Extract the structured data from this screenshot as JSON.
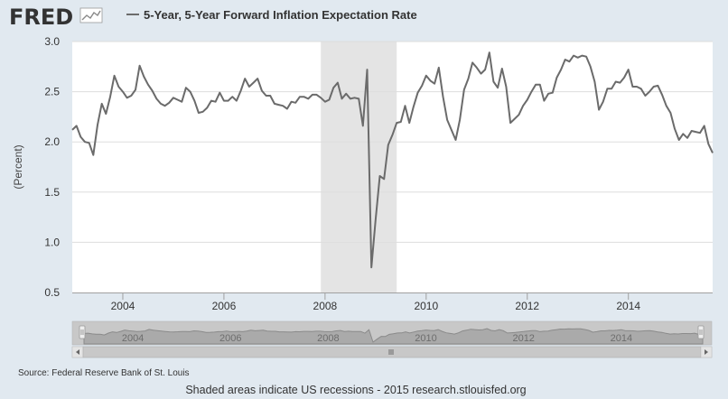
{
  "header": {
    "logo_text": "FRED",
    "logo_icon": "fred-line-graph-icon",
    "legend_label": "5-Year, 5-Year Forward Inflation Expectation Rate"
  },
  "footer": {
    "source": "Source: Federal Reserve Bank of St. Louis",
    "note": "Shaded areas indicate US recessions - 2015 research.stlouisfed.org"
  },
  "colors": {
    "line": "#6b6b6b",
    "recession": "#e4e4e4",
    "background": "#e1e9f0",
    "plot": "#ffffff",
    "grid": "#dddddd"
  },
  "navigator": {
    "labels": [
      "2004",
      "2006",
      "2008",
      "2010",
      "2012",
      "2014"
    ],
    "scroll_icon": "scrollbar-grip-icon"
  },
  "chart_data": {
    "type": "line",
    "title": "",
    "xlabel": "",
    "ylabel": "(Percent)",
    "x_start": "2003-01",
    "x_end": "2015-09",
    "xlim": [
      "2003-01",
      "2015-09"
    ],
    "ylim": [
      0.5,
      3.0
    ],
    "y_ticks": [
      "0.5",
      "1.0",
      "1.5",
      "2.0",
      "2.5",
      "3.0"
    ],
    "x_ticks": [
      "2004",
      "2006",
      "2008",
      "2010",
      "2012",
      "2014"
    ],
    "grid": true,
    "recessions": [
      {
        "start": "2007-12",
        "end": "2009-06"
      }
    ],
    "series": [
      {
        "name": "5-Year, 5-Year Forward Inflation Expectation Rate",
        "x": [
          "2003-01",
          "2003-02",
          "2003-03",
          "2003-04",
          "2003-05",
          "2003-06",
          "2003-07",
          "2003-08",
          "2003-09",
          "2003-10",
          "2003-11",
          "2003-12",
          "2004-01",
          "2004-02",
          "2004-03",
          "2004-04",
          "2004-05",
          "2004-06",
          "2004-07",
          "2004-08",
          "2004-09",
          "2004-10",
          "2004-11",
          "2004-12",
          "2005-01",
          "2005-02",
          "2005-03",
          "2005-04",
          "2005-05",
          "2005-06",
          "2005-07",
          "2005-08",
          "2005-09",
          "2005-10",
          "2005-11",
          "2005-12",
          "2006-01",
          "2006-02",
          "2006-03",
          "2006-04",
          "2006-05",
          "2006-06",
          "2006-07",
          "2006-08",
          "2006-09",
          "2006-10",
          "2006-11",
          "2006-12",
          "2007-01",
          "2007-02",
          "2007-03",
          "2007-04",
          "2007-05",
          "2007-06",
          "2007-07",
          "2007-08",
          "2007-09",
          "2007-10",
          "2007-11",
          "2007-12",
          "2008-01",
          "2008-02",
          "2008-03",
          "2008-04",
          "2008-05",
          "2008-06",
          "2008-07",
          "2008-08",
          "2008-09",
          "2008-10",
          "2008-11",
          "2008-12",
          "2009-01",
          "2009-02",
          "2009-03",
          "2009-04",
          "2009-05",
          "2009-06",
          "2009-07",
          "2009-08",
          "2009-09",
          "2009-10",
          "2009-11",
          "2009-12",
          "2010-01",
          "2010-02",
          "2010-03",
          "2010-04",
          "2010-05",
          "2010-06",
          "2010-07",
          "2010-08",
          "2010-09",
          "2010-10",
          "2010-11",
          "2010-12",
          "2011-01",
          "2011-02",
          "2011-03",
          "2011-04",
          "2011-05",
          "2011-06",
          "2011-07",
          "2011-08",
          "2011-09",
          "2011-10",
          "2011-11",
          "2011-12",
          "2012-01",
          "2012-02",
          "2012-03",
          "2012-04",
          "2012-05",
          "2012-06",
          "2012-07",
          "2012-08",
          "2012-09",
          "2012-10",
          "2012-11",
          "2012-12",
          "2013-01",
          "2013-02",
          "2013-03",
          "2013-04",
          "2013-05",
          "2013-06",
          "2013-07",
          "2013-08",
          "2013-09",
          "2013-10",
          "2013-11",
          "2013-12",
          "2014-01",
          "2014-02",
          "2014-03",
          "2014-04",
          "2014-05",
          "2014-06",
          "2014-07",
          "2014-08",
          "2014-09",
          "2014-10",
          "2014-11",
          "2014-12",
          "2015-01",
          "2015-02",
          "2015-03",
          "2015-04",
          "2015-05",
          "2015-06",
          "2015-07",
          "2015-08",
          "2015-09"
        ],
        "values": [
          2.12,
          2.16,
          2.05,
          2.0,
          1.99,
          1.87,
          2.17,
          2.38,
          2.28,
          2.45,
          2.66,
          2.55,
          2.5,
          2.44,
          2.46,
          2.52,
          2.76,
          2.65,
          2.57,
          2.51,
          2.43,
          2.38,
          2.36,
          2.39,
          2.44,
          2.42,
          2.4,
          2.54,
          2.5,
          2.41,
          2.29,
          2.3,
          2.34,
          2.41,
          2.4,
          2.49,
          2.41,
          2.41,
          2.45,
          2.41,
          2.51,
          2.63,
          2.55,
          2.59,
          2.63,
          2.51,
          2.46,
          2.46,
          2.38,
          2.37,
          2.36,
          2.33,
          2.4,
          2.39,
          2.45,
          2.45,
          2.43,
          2.47,
          2.47,
          2.44,
          2.4,
          2.42,
          2.54,
          2.59,
          2.43,
          2.48,
          2.43,
          2.44,
          2.43,
          2.16,
          2.72,
          0.75,
          1.22,
          1.66,
          1.63,
          1.97,
          2.07,
          2.19,
          2.2,
          2.36,
          2.19,
          2.35,
          2.49,
          2.56,
          2.66,
          2.61,
          2.58,
          2.74,
          2.45,
          2.22,
          2.12,
          2.02,
          2.22,
          2.52,
          2.63,
          2.79,
          2.74,
          2.68,
          2.72,
          2.89,
          2.6,
          2.54,
          2.73,
          2.55,
          2.19,
          2.23,
          2.27,
          2.36,
          2.42,
          2.5,
          2.57,
          2.57,
          2.41,
          2.48,
          2.49,
          2.64,
          2.72,
          2.82,
          2.8,
          2.86,
          2.84,
          2.86,
          2.85,
          2.75,
          2.6,
          2.32,
          2.4,
          2.53,
          2.53,
          2.6,
          2.59,
          2.64,
          2.72,
          2.55,
          2.55,
          2.53,
          2.46,
          2.5,
          2.55,
          2.56,
          2.47,
          2.36,
          2.29,
          2.13,
          2.02,
          2.08,
          2.04,
          2.11,
          2.1,
          2.09,
          2.16,
          1.98,
          1.89
        ]
      }
    ]
  }
}
